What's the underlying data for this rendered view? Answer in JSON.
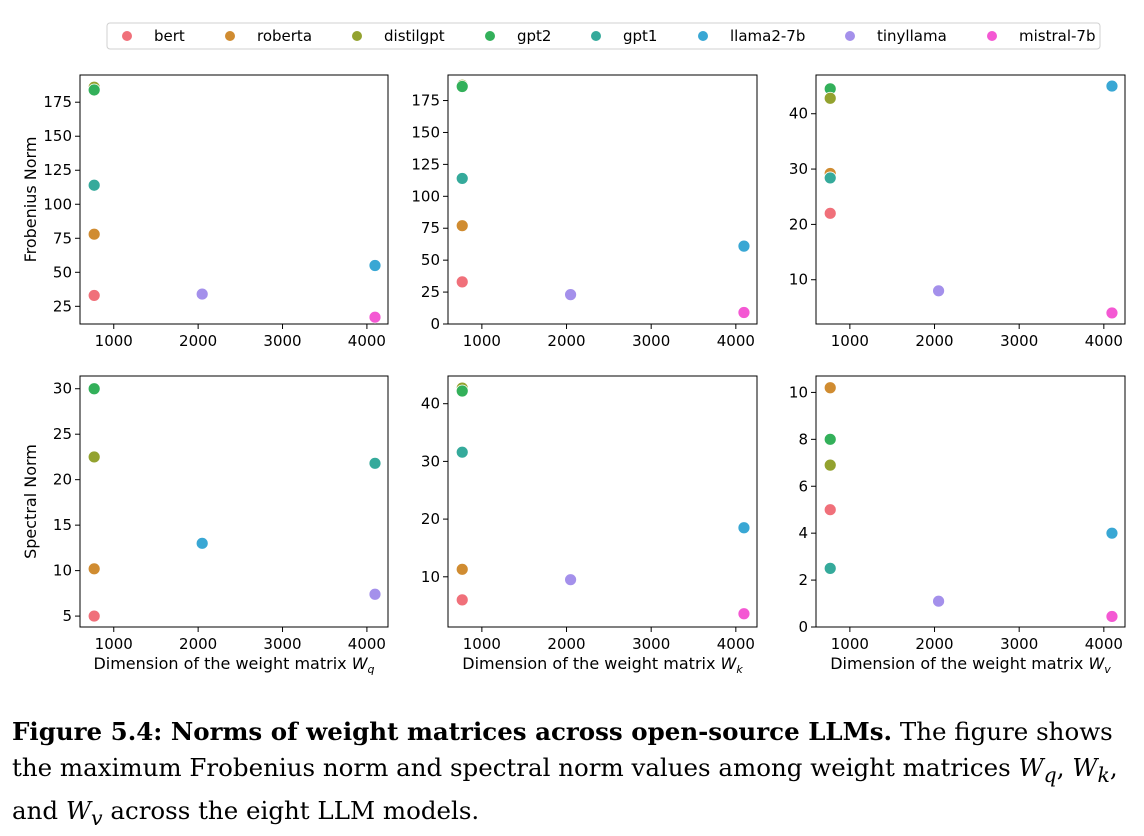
{
  "legend": {
    "placement": "top",
    "entries": [
      {
        "name": "bert",
        "color": "#f0707a"
      },
      {
        "name": "roberta",
        "color": "#d08c31"
      },
      {
        "name": "distilgpt",
        "color": "#93a22f"
      },
      {
        "name": "gpt2",
        "color": "#33b05a"
      },
      {
        "name": "gpt1",
        "color": "#35aa9b"
      },
      {
        "name": "llama2-7b",
        "color": "#39a7d4"
      },
      {
        "name": "tinyllama",
        "color": "#a490eb"
      },
      {
        "name": "mistral-7b",
        "color": "#f458d3"
      }
    ]
  },
  "chart_data": [
    {
      "type": "scatter",
      "ylabel": "Frobenius Norm",
      "xlabel": "",
      "xlim": [
        600,
        4250
      ],
      "ylim": [
        12,
        195
      ],
      "xticks": [
        1000,
        2000,
        3000,
        4000
      ],
      "yticks": [
        25,
        50,
        75,
        100,
        125,
        150,
        175
      ],
      "grid": false,
      "points": [
        {
          "series": "distilgpt",
          "x": 768,
          "y": 186
        },
        {
          "series": "gpt2",
          "x": 768,
          "y": 184
        },
        {
          "series": "gpt1",
          "x": 768,
          "y": 114
        },
        {
          "series": "roberta",
          "x": 768,
          "y": 78
        },
        {
          "series": "bert",
          "x": 768,
          "y": 33
        },
        {
          "series": "tinyllama",
          "x": 2048,
          "y": 34
        },
        {
          "series": "llama2-7b",
          "x": 4096,
          "y": 55
        },
        {
          "series": "mistral-7b",
          "x": 4096,
          "y": 17
        }
      ]
    },
    {
      "type": "scatter",
      "ylabel": "",
      "xlabel": "",
      "xlim": [
        600,
        4250
      ],
      "ylim": [
        0,
        195
      ],
      "xticks": [
        1000,
        2000,
        3000,
        4000
      ],
      "yticks": [
        0,
        25,
        50,
        75,
        100,
        125,
        150,
        175
      ],
      "grid": false,
      "points": [
        {
          "series": "distilgpt",
          "x": 768,
          "y": 187
        },
        {
          "series": "gpt2",
          "x": 768,
          "y": 186
        },
        {
          "series": "gpt1",
          "x": 768,
          "y": 114
        },
        {
          "series": "roberta",
          "x": 768,
          "y": 77
        },
        {
          "series": "bert",
          "x": 768,
          "y": 33
        },
        {
          "series": "tinyllama",
          "x": 2048,
          "y": 23
        },
        {
          "series": "llama2-7b",
          "x": 4096,
          "y": 61
        },
        {
          "series": "mistral-7b",
          "x": 4096,
          "y": 9
        }
      ]
    },
    {
      "type": "scatter",
      "ylabel": "",
      "xlabel": "",
      "xlim": [
        600,
        4250
      ],
      "ylim": [
        2,
        47
      ],
      "xticks": [
        1000,
        2000,
        3000,
        4000
      ],
      "yticks": [
        10,
        20,
        30,
        40
      ],
      "grid": false,
      "points": [
        {
          "series": "gpt2",
          "x": 768,
          "y": 44.5
        },
        {
          "series": "distilgpt",
          "x": 768,
          "y": 42.8
        },
        {
          "series": "roberta",
          "x": 768,
          "y": 29.2
        },
        {
          "series": "gpt1",
          "x": 768,
          "y": 28.4
        },
        {
          "series": "bert",
          "x": 768,
          "y": 22
        },
        {
          "series": "tinyllama",
          "x": 2048,
          "y": 8
        },
        {
          "series": "llama2-7b",
          "x": 4096,
          "y": 45
        },
        {
          "series": "mistral-7b",
          "x": 4096,
          "y": 4
        }
      ]
    },
    {
      "type": "scatter",
      "ylabel": "Spectral Norm",
      "xlabel": "Dimension of the weight matrix ",
      "xlabel_math": "W",
      "xlabel_sub": "q",
      "xlim": [
        600,
        4250
      ],
      "ylim": [
        3.8,
        31.4
      ],
      "xticks": [
        1000,
        2000,
        3000,
        4000
      ],
      "yticks": [
        5,
        10,
        15,
        20,
        25,
        30
      ],
      "grid": false,
      "points": [
        {
          "series": "gpt2",
          "x": 768,
          "y": 30
        },
        {
          "series": "distilgpt",
          "x": 768,
          "y": 22.5
        },
        {
          "series": "roberta",
          "x": 768,
          "y": 10.2
        },
        {
          "series": "bert",
          "x": 768,
          "y": 5
        },
        {
          "series": "llama2-7b",
          "x": 2048,
          "y": 13
        },
        {
          "series": "gpt1",
          "x": 4096,
          "y": 21.8
        },
        {
          "series": "tinyllama",
          "x": 4096,
          "y": 7.4
        }
      ]
    },
    {
      "type": "scatter",
      "ylabel": "",
      "xlabel": "Dimension of the weight matrix ",
      "xlabel_math": "W",
      "xlabel_sub": "k",
      "xlim": [
        600,
        4250
      ],
      "ylim": [
        1.3,
        44.8
      ],
      "xticks": [
        1000,
        2000,
        3000,
        4000
      ],
      "yticks": [
        10,
        20,
        30,
        40
      ],
      "grid": false,
      "points": [
        {
          "series": "distilgpt",
          "x": 768,
          "y": 42.7
        },
        {
          "series": "gpt2",
          "x": 768,
          "y": 42.2
        },
        {
          "series": "gpt1",
          "x": 768,
          "y": 31.6
        },
        {
          "series": "roberta",
          "x": 768,
          "y": 11.3
        },
        {
          "series": "bert",
          "x": 768,
          "y": 6
        },
        {
          "series": "tinyllama",
          "x": 2048,
          "y": 9.5
        },
        {
          "series": "llama2-7b",
          "x": 4096,
          "y": 18.5
        },
        {
          "series": "mistral-7b",
          "x": 4096,
          "y": 3.6
        }
      ]
    },
    {
      "type": "scatter",
      "ylabel": "",
      "xlabel": "Dimension of the weight matrix ",
      "xlabel_math": "W",
      "xlabel_sub": "v",
      "xlim": [
        600,
        4250
      ],
      "ylim": [
        0,
        10.7
      ],
      "xticks": [
        1000,
        2000,
        3000,
        4000
      ],
      "yticks": [
        0,
        2,
        4,
        6,
        8,
        10
      ],
      "grid": false,
      "points": [
        {
          "series": "roberta",
          "x": 768,
          "y": 10.2
        },
        {
          "series": "gpt2",
          "x": 768,
          "y": 8
        },
        {
          "series": "distilgpt",
          "x": 768,
          "y": 6.9
        },
        {
          "series": "bert",
          "x": 768,
          "y": 5
        },
        {
          "series": "gpt1",
          "x": 768,
          "y": 2.5
        },
        {
          "series": "tinyllama",
          "x": 2048,
          "y": 1.1
        },
        {
          "series": "llama2-7b",
          "x": 4096,
          "y": 4
        },
        {
          "series": "mistral-7b",
          "x": 4096,
          "y": 0.45
        }
      ]
    }
  ],
  "caption": {
    "label": "Figure 5.4: Norms of weight matrices across open-source LLMs.",
    "text1": " The figure shows the maximum Frobenius norm and spectral norm values among weight matrices ",
    "m1": "W",
    "s1": "q",
    "sep1": ", ",
    "m2": "W",
    "s2": "k",
    "sep2": ", and ",
    "m3": "W",
    "s3": "v",
    "text2": " across the eight LLM models."
  }
}
